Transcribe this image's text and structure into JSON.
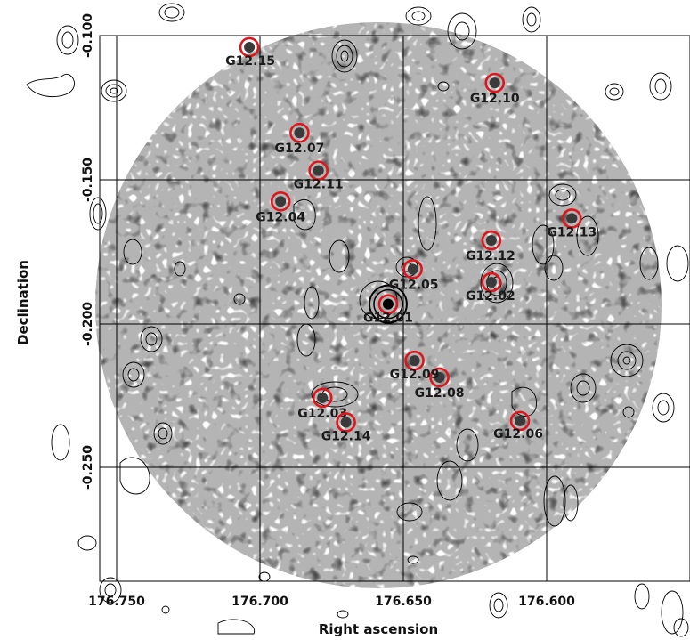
{
  "axes": {
    "x_label": "Right ascension",
    "y_label": "Declination",
    "x_ticks": [
      "176.750",
      "176.700",
      "176.650",
      "176.600"
    ],
    "y_ticks": [
      "-0.100",
      "-0.150",
      "-0.200",
      "-0.250"
    ]
  },
  "sources": [
    {
      "id": "G12.01",
      "ra": 176.6553,
      "dec": -0.1931,
      "primary": true
    },
    {
      "id": "G12.02",
      "ra": 176.6193,
      "dec": -0.1855
    },
    {
      "id": "G12.03",
      "ra": 176.6782,
      "dec": -0.2256
    },
    {
      "id": "G12.04",
      "ra": 176.6928,
      "dec": -0.1575
    },
    {
      "id": "G12.05",
      "ra": 176.6467,
      "dec": -0.181
    },
    {
      "id": "G12.07",
      "ra": 176.6862,
      "dec": -0.1337
    },
    {
      "id": "G12.08",
      "ra": 176.6374,
      "dec": -0.2185
    },
    {
      "id": "G12.09",
      "ra": 176.6461,
      "dec": -0.2127
    },
    {
      "id": "G12.10",
      "ra": 176.6181,
      "dec": -0.1164
    },
    {
      "id": "G12.11",
      "ra": 176.6796,
      "dec": -0.1468
    },
    {
      "id": "G12.12",
      "ra": 176.6193,
      "dec": -0.171
    },
    {
      "id": "G12.13",
      "ra": 176.5912,
      "dec": -0.1634
    },
    {
      "id": "G12.14",
      "ra": 176.67,
      "dec": -0.2341
    },
    {
      "id": "G12.06",
      "ra": 176.6093,
      "dec": -0.2336
    },
    {
      "id": "G12.15",
      "ra": 176.7037,
      "dec": -0.104
    }
  ],
  "colors": {
    "marker": "#e0151b",
    "contour": "#000000",
    "grid": "#000000"
  }
}
